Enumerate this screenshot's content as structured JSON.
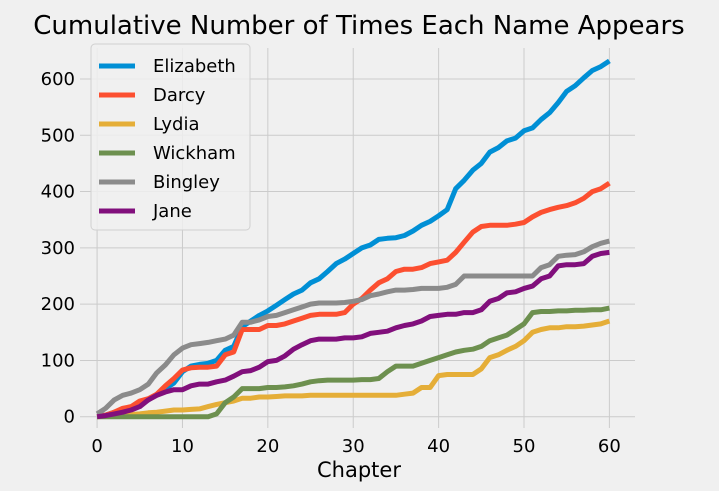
{
  "chart_data": {
    "type": "line",
    "title": "Cumulative Number of Times Each Name Appears",
    "xlabel": "Chapter",
    "ylabel": "",
    "xlim": [
      -2,
      63
    ],
    "ylim": [
      -20,
      655
    ],
    "xticks": [
      0,
      10,
      20,
      30,
      40,
      50,
      60
    ],
    "yticks": [
      0,
      100,
      200,
      300,
      400,
      500,
      600
    ],
    "grid": true,
    "legend_position": "top-left",
    "x": [
      0,
      1,
      2,
      3,
      4,
      5,
      6,
      7,
      8,
      9,
      10,
      11,
      12,
      13,
      14,
      15,
      16,
      17,
      18,
      19,
      20,
      21,
      22,
      23,
      24,
      25,
      26,
      27,
      28,
      29,
      30,
      31,
      32,
      33,
      34,
      35,
      36,
      37,
      38,
      39,
      40,
      41,
      42,
      43,
      44,
      45,
      46,
      47,
      48,
      49,
      50,
      51,
      52,
      53,
      54,
      55,
      56,
      57,
      58,
      59,
      60
    ],
    "series": [
      {
        "name": "Elizabeth",
        "color": "#008fd5",
        "values": [
          2,
          3,
          8,
          13,
          16,
          22,
          30,
          40,
          50,
          60,
          80,
          90,
          93,
          95,
          100,
          118,
          125,
          160,
          170,
          180,
          188,
          198,
          208,
          218,
          225,
          238,
          245,
          258,
          272,
          280,
          290,
          300,
          305,
          315,
          317,
          318,
          322,
          330,
          340,
          347,
          357,
          368,
          405,
          420,
          438,
          450,
          470,
          478,
          490,
          495,
          508,
          513,
          528,
          540,
          558,
          578,
          588,
          602,
          615,
          622,
          632
        ]
      },
      {
        "name": "Darcy",
        "color": "#fc4f30",
        "values": [
          0,
          3,
          8,
          15,
          18,
          28,
          32,
          40,
          55,
          68,
          83,
          87,
          88,
          88,
          90,
          110,
          115,
          155,
          155,
          155,
          162,
          162,
          165,
          170,
          175,
          180,
          182,
          182,
          182,
          185,
          200,
          210,
          225,
          238,
          245,
          258,
          262,
          262,
          265,
          272,
          275,
          278,
          292,
          310,
          328,
          338,
          340,
          340,
          340,
          342,
          345,
          355,
          363,
          368,
          372,
          375,
          380,
          388,
          400,
          405,
          415
        ]
      },
      {
        "name": "Lydia",
        "color": "#e5ae38",
        "values": [
          0,
          1,
          2,
          3,
          4,
          5,
          7,
          8,
          10,
          12,
          12,
          13,
          14,
          18,
          22,
          25,
          28,
          33,
          33,
          35,
          35,
          36,
          37,
          37,
          37,
          38,
          38,
          38,
          38,
          38,
          38,
          38,
          38,
          38,
          38,
          38,
          40,
          42,
          52,
          52,
          73,
          75,
          75,
          75,
          75,
          85,
          105,
          110,
          118,
          125,
          135,
          150,
          155,
          158,
          158,
          160,
          160,
          161,
          163,
          165,
          170
        ]
      },
      {
        "name": "Wickham",
        "color": "#6d904f",
        "values": [
          0,
          0,
          0,
          0,
          0,
          0,
          0,
          0,
          0,
          0,
          0,
          0,
          0,
          0,
          5,
          25,
          35,
          50,
          50,
          50,
          52,
          52,
          53,
          55,
          58,
          62,
          64,
          65,
          65,
          65,
          65,
          66,
          66,
          68,
          80,
          90,
          90,
          90,
          95,
          100,
          105,
          110,
          115,
          118,
          120,
          125,
          135,
          140,
          145,
          155,
          165,
          185,
          187,
          187,
          188,
          188,
          189,
          189,
          190,
          190,
          193
        ]
      },
      {
        "name": "Bingley",
        "color": "#8b8b8b",
        "values": [
          5,
          15,
          30,
          38,
          42,
          48,
          58,
          78,
          92,
          110,
          122,
          128,
          130,
          132,
          135,
          138,
          145,
          168,
          168,
          172,
          178,
          180,
          185,
          190,
          195,
          200,
          202,
          202,
          202,
          203,
          205,
          208,
          215,
          218,
          222,
          225,
          225,
          226,
          228,
          228,
          228,
          230,
          235,
          250,
          250,
          250,
          250,
          250,
          250,
          250,
          250,
          250,
          265,
          270,
          285,
          287,
          288,
          293,
          302,
          308,
          312
        ]
      },
      {
        "name": "Jane",
        "color": "#810f7c",
        "values": [
          0,
          2,
          5,
          8,
          12,
          18,
          30,
          38,
          44,
          48,
          48,
          55,
          58,
          58,
          62,
          65,
          72,
          80,
          82,
          88,
          98,
          100,
          108,
          120,
          128,
          135,
          138,
          138,
          138,
          140,
          140,
          142,
          148,
          150,
          152,
          158,
          162,
          165,
          170,
          178,
          180,
          182,
          182,
          185,
          185,
          190,
          205,
          210,
          220,
          222,
          228,
          232,
          245,
          250,
          268,
          270,
          270,
          272,
          285,
          290,
          292
        ]
      }
    ]
  }
}
